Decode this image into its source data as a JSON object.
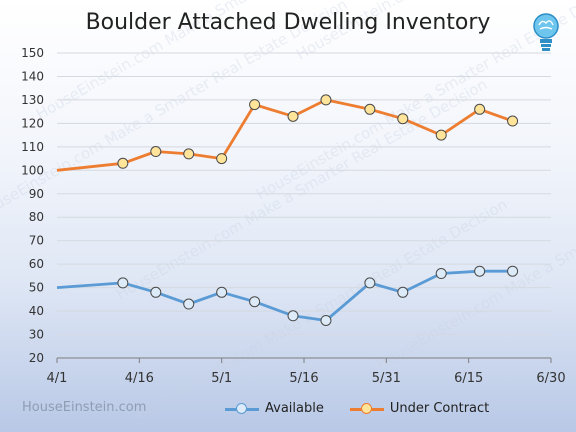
{
  "title": "Boulder Attached Dwelling Inventory",
  "brand": "HouseEinstein.com",
  "watermark": "HouseEinstein.com  Make a Smarter Real Estate Decision",
  "colors": {
    "available": "#5b9bd5",
    "available_fill": "#dcebf7",
    "under_contract": "#ed7d31",
    "under_contract_fill": "#ffe49a",
    "grid": "#d5d9e0",
    "axis": "#7f7f7f"
  },
  "icons": {
    "logo": "lightbulb-brain-icon"
  },
  "chart_data": {
    "type": "line",
    "title": "Boulder Attached Dwelling Inventory",
    "xlabel": "",
    "ylabel": "",
    "x_range": [
      "2015-04-01",
      "2015-06-30"
    ],
    "ylim": [
      20,
      150
    ],
    "y_ticks": [
      20,
      30,
      40,
      50,
      60,
      70,
      80,
      90,
      100,
      110,
      120,
      130,
      140,
      150
    ],
    "x_ticks": [
      {
        "date": "2015-04-01",
        "label": "4/1"
      },
      {
        "date": "2015-04-16",
        "label": "4/16"
      },
      {
        "date": "2015-05-01",
        "label": "5/1"
      },
      {
        "date": "2015-05-16",
        "label": "5/16"
      },
      {
        "date": "2015-05-31",
        "label": "5/31"
      },
      {
        "date": "2015-06-15",
        "label": "6/15"
      },
      {
        "date": "2015-06-30",
        "label": "6/30"
      }
    ],
    "grid": true,
    "legend_position": "bottom",
    "series": [
      {
        "name": "Available",
        "points": [
          {
            "x": "2015-04-01",
            "y": 50
          },
          {
            "x": "2015-04-13",
            "y": 52
          },
          {
            "x": "2015-04-19",
            "y": 48
          },
          {
            "x": "2015-04-25",
            "y": 43
          },
          {
            "x": "2015-05-01",
            "y": 48
          },
          {
            "x": "2015-05-07",
            "y": 44
          },
          {
            "x": "2015-05-14",
            "y": 38
          },
          {
            "x": "2015-05-20",
            "y": 36
          },
          {
            "x": "2015-05-28",
            "y": 52
          },
          {
            "x": "2015-06-03",
            "y": 48
          },
          {
            "x": "2015-06-10",
            "y": 56
          },
          {
            "x": "2015-06-17",
            "y": 57
          },
          {
            "x": "2015-06-23",
            "y": 57
          }
        ]
      },
      {
        "name": "Under Contract",
        "points": [
          {
            "x": "2015-04-01",
            "y": 100
          },
          {
            "x": "2015-04-13",
            "y": 103
          },
          {
            "x": "2015-04-19",
            "y": 108
          },
          {
            "x": "2015-04-25",
            "y": 107
          },
          {
            "x": "2015-05-01",
            "y": 105
          },
          {
            "x": "2015-05-07",
            "y": 128
          },
          {
            "x": "2015-05-14",
            "y": 123
          },
          {
            "x": "2015-05-20",
            "y": 130
          },
          {
            "x": "2015-05-28",
            "y": 126
          },
          {
            "x": "2015-06-03",
            "y": 122
          },
          {
            "x": "2015-06-10",
            "y": 115
          },
          {
            "x": "2015-06-17",
            "y": 126
          },
          {
            "x": "2015-06-23",
            "y": 121
          }
        ]
      }
    ]
  }
}
